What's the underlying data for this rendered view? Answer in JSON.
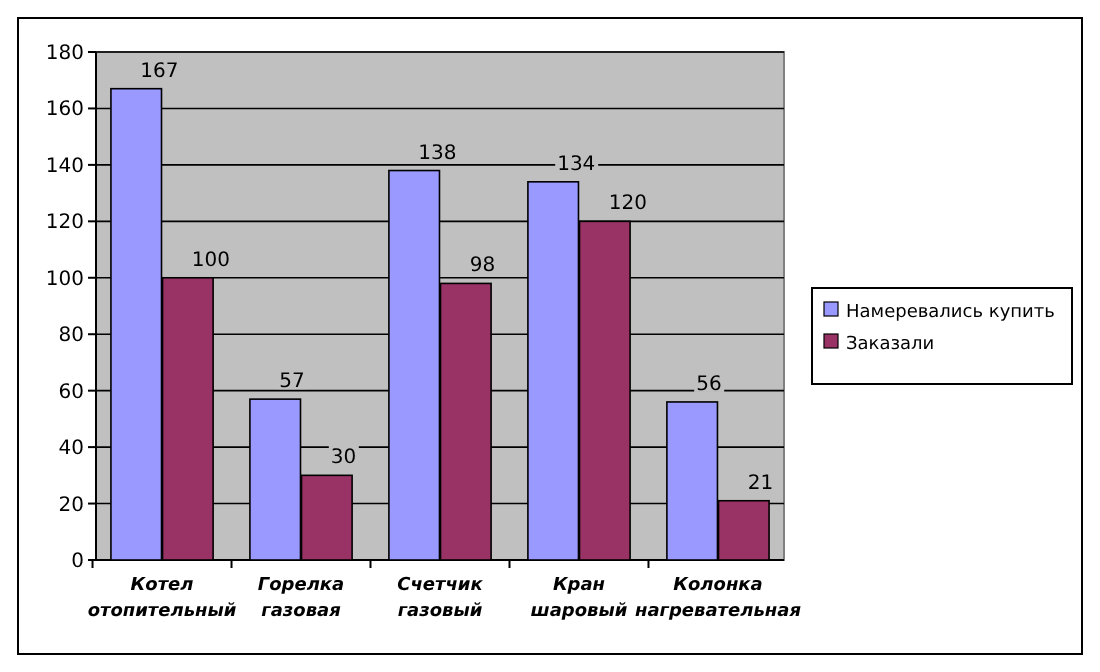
{
  "chart_data": {
    "type": "bar",
    "categories": [
      "Котел отопительный",
      "Горелка газовая",
      "Счетчик газовый",
      "Кран шаровый",
      "Колонка нагревательная"
    ],
    "series": [
      {
        "name": "Намеревались купить",
        "color": "#9999ff",
        "values": [
          167,
          57,
          138,
          134,
          56
        ]
      },
      {
        "name": "Заказали",
        "color": "#993366",
        "values": [
          100,
          30,
          98,
          120,
          21
        ]
      }
    ],
    "ylim": [
      0,
      180
    ],
    "yticks": [
      0,
      20,
      40,
      60,
      80,
      100,
      120,
      140,
      160,
      180
    ],
    "grid": "y",
    "legend": "right",
    "data_labels": true
  }
}
